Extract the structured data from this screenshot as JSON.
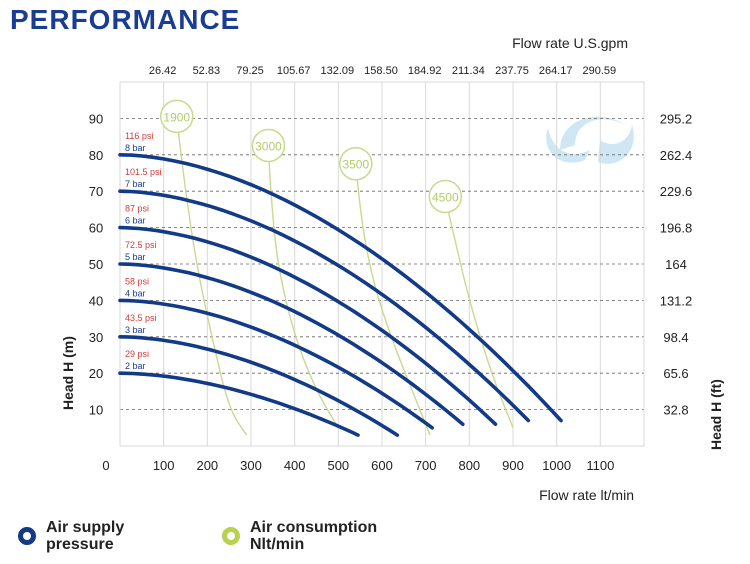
{
  "page_title": "PERFORMANCE",
  "colors": {
    "title": "#1a3d8f",
    "pressure_curve": "#123a87",
    "air_curve": "#c9d98e",
    "psi_text": "#d43a3a",
    "bar_text": "#1a3d8f",
    "grid_dash": "#666666",
    "grid_light": "#d9d9d9",
    "axis_text": "#222222",
    "watermark": "#a9d3ee"
  },
  "legend": {
    "pressure": {
      "line1": "Air supply",
      "line2": "pressure",
      "color": "#123a87"
    },
    "air": {
      "line1": "Air consumption",
      "line2": "Nlt/min",
      "color": "#b9d14e"
    }
  },
  "chart_data": {
    "type": "line",
    "xlabel": "Flow rate  lt/min",
    "x2label": "Flow rate U.S.gpm",
    "ylabel": "Head H (m)",
    "y2label": "Head H (ft)",
    "xlim": [
      0,
      1200
    ],
    "ylim": [
      0,
      100
    ],
    "x_ticks": [
      0,
      100,
      200,
      300,
      400,
      500,
      600,
      700,
      800,
      900,
      1000,
      1100
    ],
    "x_tick_labels": [
      "0",
      "100",
      "200",
      "300",
      "400",
      "500",
      "600",
      "700",
      "800",
      "900",
      "1000",
      "1100"
    ],
    "y_ticks": [
      10,
      20,
      30,
      40,
      50,
      60,
      70,
      80,
      90
    ],
    "y_tick_labels": [
      "10",
      "20",
      "30",
      "40",
      "50",
      "60",
      "70",
      "80",
      "90"
    ],
    "top_axis": {
      "positions": [
        100,
        200,
        300,
        400,
        500,
        600,
        700,
        800,
        900,
        1000,
        1100
      ],
      "labels": [
        "26.42",
        "52.83",
        "79.25",
        "105.67",
        "132.09",
        "158.50",
        "184.92",
        "211.34",
        "237.75",
        "264.17",
        "290.59"
      ]
    },
    "right_axis": {
      "positions": [
        10,
        20,
        30,
        40,
        50,
        60,
        70,
        80,
        90
      ],
      "labels": [
        "32.8",
        "65.6",
        "98.4",
        "131.2",
        "164",
        "196.8",
        "229.6",
        "262.4",
        "295.2"
      ]
    },
    "series": [
      {
        "name": "2 bar",
        "psi": "29 psi",
        "start": 20,
        "end_x": 545,
        "end_y": 3
      },
      {
        "name": "3 bar",
        "psi": "43.5 psi",
        "start": 30,
        "end_x": 635,
        "end_y": 3
      },
      {
        "name": "4 bar",
        "psi": "58 psi",
        "start": 40,
        "end_x": 715,
        "end_y": 5
      },
      {
        "name": "5 bar",
        "psi": "72.5 psi",
        "start": 50,
        "end_x": 785,
        "end_y": 6
      },
      {
        "name": "6 bar",
        "psi": "87 psi",
        "start": 60,
        "end_x": 860,
        "end_y": 6
      },
      {
        "name": "7 bar",
        "psi": "101.5 psi",
        "start": 70,
        "end_x": 935,
        "end_y": 7
      },
      {
        "name": "8 bar",
        "psi": "116 psi",
        "start": 80,
        "end_x": 1010,
        "end_y": 7
      }
    ],
    "air_consumption": [
      {
        "label": "1900",
        "points": [
          [
            130,
            90
          ],
          [
            150,
            70
          ],
          [
            175,
            50
          ],
          [
            210,
            30
          ],
          [
            250,
            10
          ],
          [
            290,
            3
          ]
        ]
      },
      {
        "label": "3000",
        "points": [
          [
            340,
            82
          ],
          [
            345,
            70
          ],
          [
            360,
            50
          ],
          [
            400,
            30
          ],
          [
            450,
            15
          ],
          [
            500,
            5
          ]
        ]
      },
      {
        "label": "3500",
        "points": [
          [
            540,
            77
          ],
          [
            555,
            60
          ],
          [
            580,
            45
          ],
          [
            620,
            30
          ],
          [
            680,
            12
          ],
          [
            710,
            3
          ]
        ]
      },
      {
        "label": "4500",
        "points": [
          [
            745,
            68
          ],
          [
            770,
            55
          ],
          [
            800,
            40
          ],
          [
            850,
            20
          ],
          [
            900,
            5
          ]
        ]
      }
    ]
  }
}
